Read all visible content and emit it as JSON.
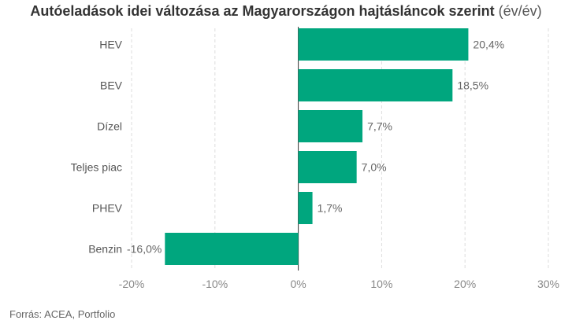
{
  "chart_data": {
    "type": "bar",
    "orientation": "horizontal",
    "title": "Autóeladások idei változása az Magyarországon hajtásláncok szerint",
    "title_suffix": "(év/év)",
    "categories": [
      "HEV",
      "BEV",
      "Dízel",
      "Teljes piac",
      "PHEV",
      "Benzin"
    ],
    "values": [
      20.4,
      18.5,
      7.7,
      7.0,
      1.7,
      -16.0
    ],
    "value_labels": [
      "20,4%",
      "18,5%",
      "7,7%",
      "7,0%",
      "1,7%",
      "-16,0%"
    ],
    "xlim": [
      -20,
      30
    ],
    "xticks": [
      -20,
      -10,
      0,
      10,
      20,
      30
    ],
    "xtick_labels": [
      "-20%",
      "-10%",
      "0%",
      "10%",
      "20%",
      "30%"
    ],
    "grid": "vertical",
    "bar_color": "#00a67e"
  },
  "source": "Forrás: ACEA, Portfolio"
}
